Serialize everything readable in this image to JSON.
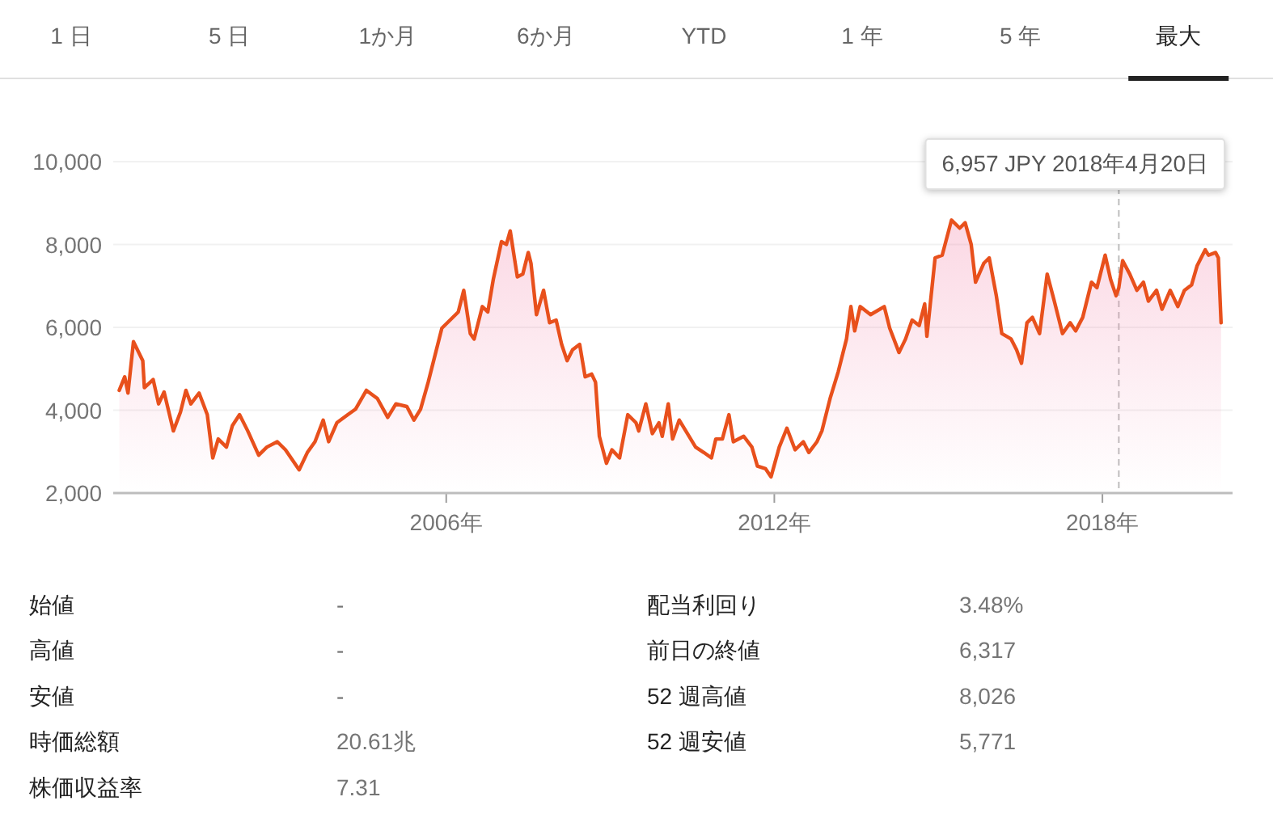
{
  "chart_data": [
    {
      "type": "other",
      "annotations": [
        "1 日",
        "5 日",
        "1か月",
        "6か月",
        "YTD",
        "1 年",
        "5 年",
        "最大"
      ]
    },
    {
      "type": "area",
      "grid": "y",
      "xlim": [
        1999.91,
        2020.38
      ],
      "ylim": [
        2000,
        10000
      ],
      "xticks": [
        {
          "value": 2006,
          "label": "2006年"
        },
        {
          "value": 2012,
          "label": "2012年"
        },
        {
          "value": 2018,
          "label": "2018年"
        }
      ],
      "yticks": [
        {
          "value": 2000,
          "label": "2,000"
        },
        {
          "value": 4000,
          "label": "4,000"
        },
        {
          "value": 6000,
          "label": "6,000"
        },
        {
          "value": 8000,
          "label": "8,000"
        },
        {
          "value": 10000,
          "label": "10,000"
        }
      ],
      "ref_lines": [
        {
          "axis": "x",
          "value": 2018.3,
          "color": "#bdbdbd",
          "line_style": "dashed"
        }
      ],
      "annotations": [
        "6,957 JPY  2018年4月20日"
      ],
      "series": [
        {
          "color": "#e8501c",
          "x": [
            2000.02,
            2000.12,
            2000.18,
            2000.28,
            2000.45,
            2000.48,
            2000.64,
            2000.74,
            2000.84,
            2001.01,
            2001.14,
            2001.24,
            2001.33,
            2001.48,
            2001.63,
            2001.73,
            2001.83,
            2001.98,
            2002.09,
            2002.22,
            2002.37,
            2002.57,
            2002.72,
            2002.91,
            2003.06,
            2003.31,
            2003.46,
            2003.6,
            2003.75,
            2003.85,
            2004.0,
            2004.2,
            2004.34,
            2004.54,
            2004.74,
            2004.93,
            2005.08,
            2005.28,
            2005.41,
            2005.53,
            2005.67,
            2005.77,
            2005.92,
            2006.07,
            2006.22,
            2006.32,
            2006.44,
            2006.51,
            2006.66,
            2006.76,
            2006.86,
            2007.01,
            2007.1,
            2007.17,
            2007.3,
            2007.4,
            2007.5,
            2007.55,
            2007.65,
            2007.78,
            2007.89,
            2008.01,
            2008.11,
            2008.21,
            2008.31,
            2008.44,
            2008.54,
            2008.66,
            2008.73,
            2008.8,
            2008.93,
            2009.03,
            2009.17,
            2009.32,
            2009.47,
            2009.52,
            2009.65,
            2009.77,
            2009.89,
            2009.95,
            2010.06,
            2010.14,
            2010.26,
            2010.41,
            2010.56,
            2010.71,
            2010.85,
            2010.93,
            2011.05,
            2011.17,
            2011.25,
            2011.44,
            2011.59,
            2011.69,
            2011.84,
            2011.94,
            2012.09,
            2012.23,
            2012.38,
            2012.53,
            2012.63,
            2012.78,
            2012.87,
            2013.02,
            2013.17,
            2013.32,
            2013.4,
            2013.47,
            2013.57,
            2013.76,
            2014.01,
            2014.11,
            2014.28,
            2014.4,
            2014.52,
            2014.65,
            2014.75,
            2014.79,
            2014.94,
            2015.07,
            2015.24,
            2015.39,
            2015.49,
            2015.6,
            2015.68,
            2015.83,
            2015.93,
            2016.06,
            2016.16,
            2016.33,
            2016.43,
            2016.52,
            2016.62,
            2016.72,
            2016.85,
            2016.99,
            2017.12,
            2017.27,
            2017.41,
            2017.51,
            2017.64,
            2017.8,
            2017.9,
            2018.05,
            2018.15,
            2018.25,
            2018.3,
            2018.37,
            2018.5,
            2018.63,
            2018.75,
            2018.84,
            2018.99,
            2019.09,
            2019.24,
            2019.38,
            2019.5,
            2019.63,
            2019.73,
            2019.88,
            2019.94,
            2020.07,
            2020.12,
            2020.17
          ],
          "values": [
            4480,
            4806,
            4414,
            5654,
            5197,
            4545,
            4740,
            4153,
            4440,
            3500,
            3957,
            4480,
            4153,
            4414,
            3892,
            2848,
            3305,
            3109,
            3631,
            3892,
            3500,
            2914,
            3109,
            3240,
            3044,
            2561,
            2979,
            3240,
            3762,
            3240,
            3697,
            3892,
            4023,
            4480,
            4284,
            3827,
            4153,
            4088,
            3762,
            4023,
            4675,
            5197,
            5980,
            6176,
            6372,
            6894,
            5850,
            5719,
            6502,
            6372,
            7155,
            8068,
            8003,
            8329,
            7220,
            7285,
            7807,
            7546,
            6307,
            6894,
            6111,
            6176,
            5589,
            5197,
            5458,
            5589,
            4806,
            4871,
            4675,
            3370,
            2718,
            3044,
            2848,
            3892,
            3697,
            3500,
            4153,
            3435,
            3697,
            3370,
            4153,
            3305,
            3762,
            3435,
            3109,
            2979,
            2848,
            3305,
            3305,
            3892,
            3240,
            3370,
            3109,
            2653,
            2587,
            2392,
            3109,
            3566,
            3044,
            3240,
            2979,
            3240,
            3500,
            4284,
            4936,
            5719,
            6502,
            5915,
            6502,
            6307,
            6502,
            5980,
            5393,
            5719,
            6176,
            6046,
            6567,
            5785,
            7677,
            7742,
            8590,
            8394,
            8525,
            8003,
            7090,
            7546,
            7677,
            6763,
            5850,
            5719,
            5458,
            5132,
            6111,
            6241,
            5850,
            7285,
            6633,
            5850,
            6111,
            5915,
            6241,
            7090,
            6959,
            7742,
            7155,
            6763,
            6957,
            7611,
            7285,
            6894,
            7090,
            6633,
            6894,
            6437,
            6894,
            6502,
            6894,
            7024,
            7481,
            7872,
            7742,
            7807,
            7677,
            6111
          ]
        }
      ]
    },
    {
      "type": "other",
      "annotations": [
        "始値",
        "-",
        "配当利回り",
        "3.48%",
        "高値",
        "-",
        "前日の終値",
        "6,317",
        "安値",
        "-",
        "52 週高値",
        "8,026",
        "時価総額",
        "20.61兆",
        "52 週安値",
        "5,771",
        "株価収益率",
        "7.31"
      ]
    }
  ]
}
